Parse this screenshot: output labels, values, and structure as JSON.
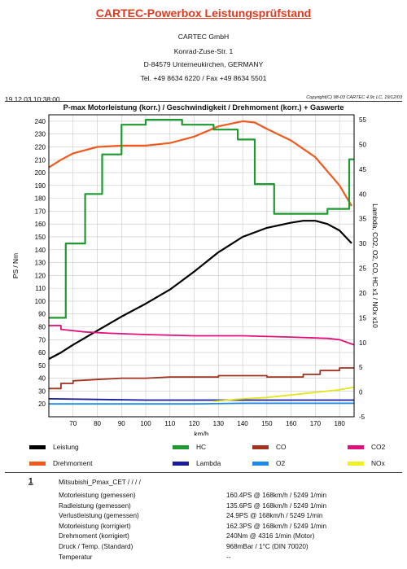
{
  "header": {
    "title": "CARTEC-Powerbox Leistungsprüfstand",
    "company": "CARTEC GmbH",
    "street": "Konrad-Zuse-Str. 1",
    "city": "D-84579 Unterneukirchen, GERMANY",
    "phone": "Tel. +49 8634 6220 / Fax +49 8634 5501",
    "datetime": "19.12.03 10:38:00",
    "copyright": "Copyright(C) 98-03 CARTEC 4.9c LC, 19/12/03"
  },
  "chart_data": {
    "type": "line",
    "title": "P-max Motorleistung (korr.) / Geschwindigkeit / Drehmoment (korr.) + Gaswerte",
    "xlabel": "km/h",
    "ylabel_left": "PS / Nm",
    "ylabel_right": "Lambda, CO2, O2, CO, HC x1 / NOx x10",
    "xlim": [
      60,
      186
    ],
    "ylim_left": [
      10,
      245
    ],
    "ylim_right": [
      -5,
      56
    ],
    "xticks": [
      70,
      80,
      90,
      100,
      110,
      120,
      130,
      140,
      150,
      160,
      170,
      180
    ],
    "yticks_left": [
      20,
      30,
      40,
      50,
      60,
      70,
      80,
      90,
      100,
      110,
      120,
      130,
      140,
      150,
      160,
      170,
      180,
      190,
      200,
      210,
      220,
      230,
      240
    ],
    "yticks_right": [
      -5,
      0,
      5,
      10,
      15,
      20,
      25,
      30,
      35,
      40,
      45,
      50,
      55
    ],
    "grid": true,
    "series": [
      {
        "name": "Leistung",
        "color": "#000000",
        "axis": "left",
        "x": [
          60,
          65,
          70,
          80,
          90,
          100,
          110,
          120,
          130,
          140,
          150,
          160,
          165,
          170,
          175,
          180,
          185
        ],
        "y": [
          55,
          60,
          66,
          77,
          88,
          98,
          109,
          123,
          138,
          150,
          157,
          161,
          162.5,
          162.5,
          160,
          155,
          145
        ]
      },
      {
        "name": "Drehmoment",
        "color": "#f05a1e",
        "axis": "left",
        "x": [
          60,
          65,
          70,
          80,
          90,
          100,
          110,
          120,
          130,
          140,
          145,
          150,
          160,
          170,
          180,
          185
        ],
        "y": [
          204,
          210,
          215,
          220,
          221,
          221,
          223,
          228,
          236,
          240,
          239,
          234,
          225,
          212,
          190,
          174
        ]
      },
      {
        "name": "HC",
        "color": "#1f9a2e",
        "axis": "right",
        "step": true,
        "x": [
          60,
          67,
          67,
          75,
          75,
          82,
          82,
          90,
          90,
          100,
          100,
          115,
          115,
          128,
          128,
          138,
          138,
          145,
          145,
          153,
          153,
          175,
          175,
          184,
          184,
          186
        ],
        "y": [
          15,
          15,
          30,
          30,
          40,
          40,
          48,
          48,
          54,
          54,
          55,
          55,
          54,
          54,
          53,
          53,
          51,
          51,
          42,
          42,
          36,
          36,
          37,
          37,
          47,
          47
        ]
      },
      {
        "name": "CO",
        "color": "#a0321e",
        "axis": "left",
        "step": true,
        "x": [
          60,
          65,
          65,
          70,
          70,
          80,
          90,
          100,
          110,
          130,
          130,
          150,
          150,
          165,
          165,
          172,
          172,
          180,
          180,
          186
        ],
        "y": [
          32,
          32,
          36,
          36,
          38,
          39,
          40,
          40,
          41,
          41,
          42,
          42,
          41,
          41,
          43,
          43,
          46,
          46,
          48,
          48
        ]
      },
      {
        "name": "CO2",
        "color": "#e0107a",
        "axis": "left",
        "x": [
          60,
          65,
          65,
          75,
          85,
          100,
          120,
          140,
          160,
          175,
          180,
          186
        ],
        "y": [
          81,
          81,
          78,
          76,
          75,
          74,
          73,
          73,
          72,
          71,
          70,
          66
        ]
      },
      {
        "name": "Lambda",
        "color": "#1a1a9a",
        "axis": "left",
        "x": [
          60,
          80,
          100,
          120,
          140,
          160,
          186
        ],
        "y": [
          24,
          23.5,
          23,
          23,
          23,
          23,
          23
        ]
      },
      {
        "name": "O2",
        "color": "#1e8ae6",
        "axis": "left",
        "x": [
          60,
          80,
          100,
          120,
          140,
          160,
          186
        ],
        "y": [
          20,
          20,
          20,
          20,
          20.5,
          20.5,
          20.5
        ]
      },
      {
        "name": "NOx",
        "color": "#e6e61e",
        "axis": "left",
        "x": [
          128,
          140,
          150,
          160,
          170,
          180,
          186
        ],
        "y": [
          22,
          24,
          25,
          27,
          29,
          31,
          33
        ]
      }
    ]
  },
  "legend": [
    {
      "name": "Leistung",
      "color": "#000000"
    },
    {
      "name": "Drehmoment",
      "color": "#f05a1e"
    },
    {
      "name": "HC",
      "color": "#1f9a2e"
    },
    {
      "name": "Lambda",
      "color": "#1a1a9a"
    },
    {
      "name": "CO",
      "color": "#a0321e"
    },
    {
      "name": "O2",
      "color": "#1e8ae6"
    },
    {
      "name": "CO2",
      "color": "#e0107a"
    },
    {
      "name": "NOx",
      "color": "#f0f020"
    }
  ],
  "results": {
    "index": "1",
    "vehicle": "Mitsubishi_Pmax_CET /  /  /  /",
    "rows": [
      {
        "label": "Motorleistung (gemessen)",
        "value": "160.4PS @ 168km/h / 5249 1/min"
      },
      {
        "label": "Radleistung (gemessen)",
        "value": "135.6PS @ 168km/h / 5249 1/min"
      },
      {
        "label": "Verlustleistung (gemessen)",
        "value": "24.9PS @ 168km/h / 5249 1/min"
      },
      {
        "label": "Motorleistung (korrigiert)",
        "value": "162.3PS @ 168km/h / 5249 1/min"
      },
      {
        "label": "Drehmoment (korrigiert)",
        "value": "240Nm @ 4316 1/min (Motor)"
      },
      {
        "label": "Druck / Temp. (Standard)",
        "value": "968mBar / 1°C  (DIN 70020)"
      },
      {
        "label": "Temperatur",
        "value": "--"
      }
    ]
  }
}
